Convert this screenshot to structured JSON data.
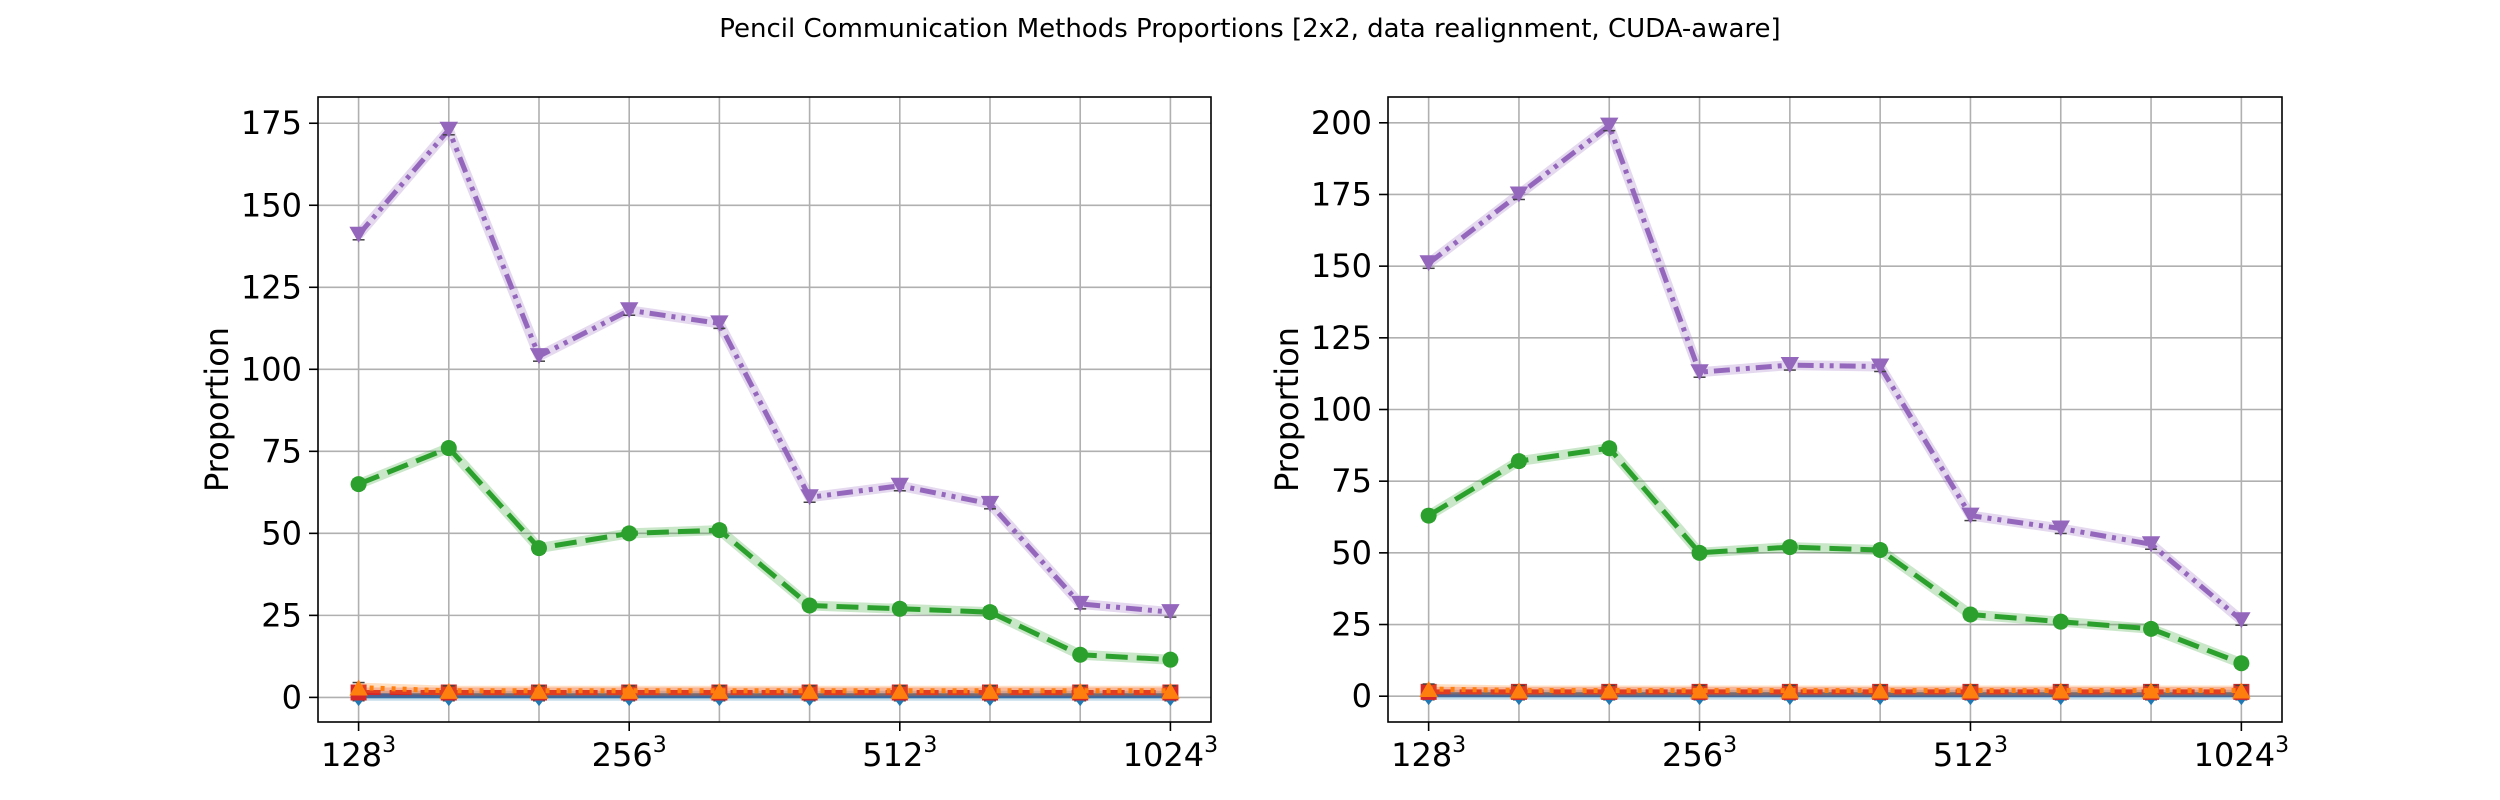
{
  "figure": {
    "title": "Pencil Communication Methods Proportions [2x2, data realignment, CUDA-aware]"
  },
  "chart_data": [
    {
      "type": "line",
      "ylabel": "Proportion",
      "xlabel": "",
      "ylim": [
        -7.5,
        183
      ],
      "yticks": [
        0,
        25,
        50,
        75,
        100,
        125,
        150,
        175
      ],
      "xlim": [
        -0.45,
        9.45
      ],
      "xtick_positions": [
        0,
        3,
        6,
        9
      ],
      "xtick_labels": [
        {
          "base": "128",
          "exp": "3"
        },
        {
          "base": "256",
          "exp": "3"
        },
        {
          "base": "512",
          "exp": "3"
        },
        {
          "base": "1024",
          "exp": "3"
        }
      ],
      "x": [
        0,
        1,
        2,
        3,
        4,
        5,
        6,
        7,
        8,
        9
      ],
      "grid": true,
      "series": [
        {
          "color": "#9467bd",
          "dash": "dashdotdot",
          "marker": "tri-down",
          "values": [
            141,
            173,
            104,
            118,
            114,
            61,
            64.5,
            59,
            28.5,
            26
          ]
        },
        {
          "color": "#2ca02c",
          "dash": "dashed",
          "marker": "circle",
          "values": [
            65,
            76,
            45.5,
            50,
            51,
            28,
            27,
            26,
            13,
            11.5
          ]
        },
        {
          "color": "#ff7f0e",
          "dash": "dotted",
          "marker": "tri-up",
          "values": [
            3,
            2,
            2,
            2,
            2,
            2,
            2,
            2,
            2,
            2
          ]
        },
        {
          "color": "#d62728",
          "dash": "dashed",
          "marker": "square",
          "values": [
            1.5,
            1.5,
            1.5,
            1.5,
            1.5,
            1.5,
            1.5,
            1.5,
            1.5,
            1.5
          ]
        },
        {
          "color": "#1f77b4",
          "dash": "solid",
          "marker": "diamond",
          "values": [
            0.5,
            0.5,
            0.5,
            0.5,
            0.5,
            0.5,
            0.5,
            0.5,
            0.5,
            0.5
          ]
        }
      ]
    },
    {
      "type": "line",
      "ylabel": "Proportion",
      "xlabel": "",
      "ylim": [
        -9,
        209
      ],
      "yticks": [
        0,
        25,
        50,
        75,
        100,
        125,
        150,
        175,
        200
      ],
      "xlim": [
        -0.45,
        9.45
      ],
      "xtick_positions": [
        0,
        3,
        6,
        9
      ],
      "xtick_labels": [
        {
          "base": "128",
          "exp": "3"
        },
        {
          "base": "256",
          "exp": "3"
        },
        {
          "base": "512",
          "exp": "3"
        },
        {
          "base": "1024",
          "exp": "3"
        }
      ],
      "x": [
        0,
        1,
        2,
        3,
        4,
        5,
        6,
        7,
        8,
        9
      ],
      "grid": true,
      "series": [
        {
          "color": "#9467bd",
          "dash": "dashdotdot",
          "marker": "tri-down",
          "values": [
            151,
            175,
            199,
            113,
            115.5,
            115,
            63,
            58.5,
            53,
            26.5
          ]
        },
        {
          "color": "#2ca02c",
          "dash": "dashed",
          "marker": "circle",
          "values": [
            63,
            82,
            86.5,
            50,
            52,
            51,
            28.5,
            26,
            23.5,
            11.5
          ]
        },
        {
          "color": "#ff7f0e",
          "dash": "dotted",
          "marker": "tri-up",
          "values": [
            2.5,
            2,
            2,
            2,
            2,
            2,
            2,
            2,
            2,
            2
          ]
        },
        {
          "color": "#d62728",
          "dash": "dashed",
          "marker": "square",
          "values": [
            1.5,
            1.5,
            1.5,
            1.5,
            1.5,
            1.5,
            1.5,
            1.5,
            1.5,
            1.5
          ]
        },
        {
          "color": "#1f77b4",
          "dash": "solid",
          "marker": "diamond",
          "values": [
            0.5,
            0.5,
            0.5,
            0.5,
            0.5,
            0.5,
            0.5,
            0.5,
            0.5,
            0.5
          ]
        }
      ]
    }
  ]
}
